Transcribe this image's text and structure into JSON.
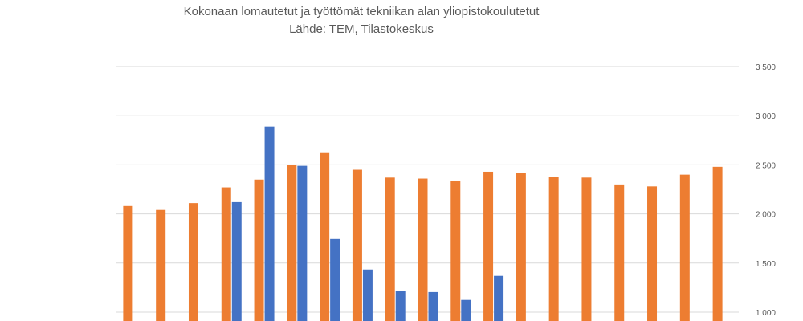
{
  "chart_data": {
    "type": "bar",
    "title": "Kokonaan lomautetut ja työttömät tekniikan alan yliopistokoulutetut",
    "subtitle": "Lähde: TEM, Tilastokeskus",
    "xlabel": "",
    "ylabel": "",
    "grid": true,
    "y_axis_side": "right",
    "ylim": [
      1000,
      3500
    ],
    "yticks": [
      1000,
      1500,
      2000,
      2500,
      3000,
      3500
    ],
    "ytick_labels": [
      "1 000",
      "1 500",
      "2 000",
      "2 500",
      "3 000",
      "3 500"
    ],
    "categories": [
      "",
      "",
      "",
      "",
      "",
      "",
      "",
      "",
      "",
      "",
      "",
      "",
      "",
      "",
      "",
      "",
      "",
      "",
      ""
    ],
    "series": [
      {
        "color": "#ED7D31",
        "values": [
          2080,
          2040,
          2110,
          2270,
          2350,
          2500,
          2620,
          2450,
          2370,
          2360,
          2340,
          2430,
          2420,
          2380,
          2370,
          2300,
          2280,
          2400,
          2480
        ]
      },
      {
        "color": "#4472C4",
        "values": [
          null,
          null,
          null,
          2120,
          2890,
          2490,
          1745,
          1435,
          1220,
          1205,
          1125,
          1370,
          null,
          null,
          null,
          null,
          null,
          null,
          null
        ]
      }
    ]
  }
}
